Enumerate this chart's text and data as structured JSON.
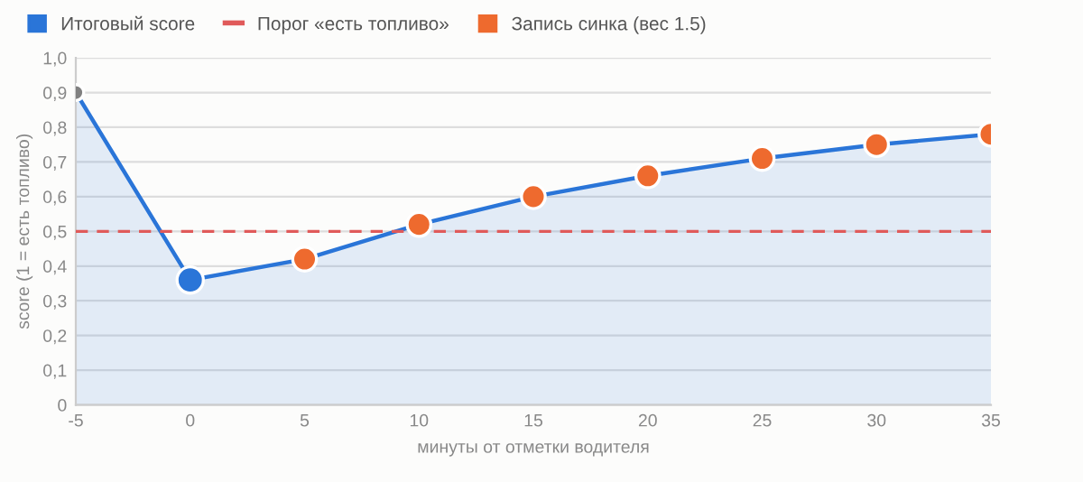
{
  "chart_data": {
    "type": "area",
    "xlabel": "минуты от отметки водителя",
    "ylabel": "score (1 = есть топливо)",
    "xlim": [
      -5,
      35
    ],
    "xticks": [
      -5,
      0,
      5,
      10,
      15,
      20,
      25,
      30,
      35
    ],
    "ylim": [
      0,
      1
    ],
    "yticks": [
      {
        "value": 0,
        "label": "0"
      },
      {
        "value": 0.1,
        "label": "0,1"
      },
      {
        "value": 0.2,
        "label": "0,2"
      },
      {
        "value": 0.3,
        "label": "0,3"
      },
      {
        "value": 0.4,
        "label": "0,4"
      },
      {
        "value": 0.5,
        "label": "0,5"
      },
      {
        "value": 0.6,
        "label": "0,6"
      },
      {
        "value": 0.7,
        "label": "0,7"
      },
      {
        "value": 0.8,
        "label": "0,8"
      },
      {
        "value": 0.9,
        "label": "0,9"
      },
      {
        "value": 1,
        "label": "1,0"
      }
    ],
    "grid": "y",
    "legend": "top left",
    "series": [
      {
        "name": "Итоговый score",
        "color": "#2a75d8",
        "x": [
          -5,
          0,
          5,
          10,
          15,
          20,
          25,
          30,
          35
        ],
        "values": [
          0.9,
          0.36,
          0.42,
          0.52,
          0.6,
          0.66,
          0.71,
          0.75,
          0.78
        ],
        "colors": [
          "#808080",
          "#2a75d8",
          null,
          null,
          null,
          null,
          null,
          null,
          null
        ]
      },
      {
        "name": "Запись синка (вес 1.5)",
        "type": "scatter",
        "color": "#ee6a2e",
        "x": [
          5,
          10,
          15,
          20,
          25,
          30,
          35
        ],
        "values": [
          0.42,
          0.52,
          0.6,
          0.66,
          0.71,
          0.75,
          0.78
        ]
      }
    ],
    "ref_lines": [
      {
        "axis": "y",
        "value": 0.5,
        "label": "Порог «есть топливо»",
        "color": "#e05a5a",
        "line_style": "dashed"
      }
    ]
  }
}
